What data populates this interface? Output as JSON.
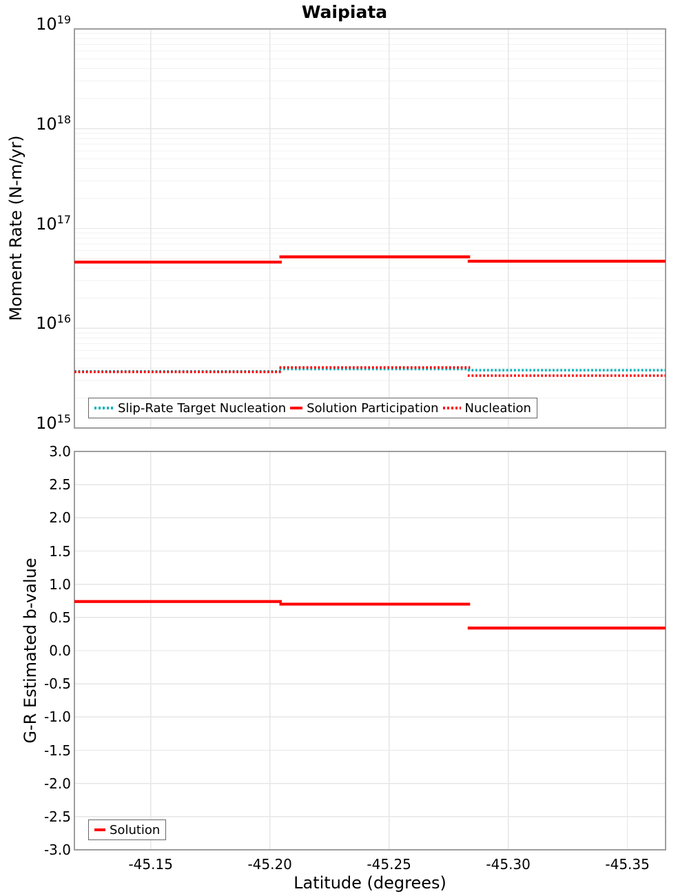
{
  "title": "Waipiata",
  "xaxis": {
    "label": "Latitude (degrees)",
    "tick_values": [
      -45.15,
      -45.2,
      -45.25,
      -45.3,
      -45.35
    ],
    "tick_labels": [
      "-45.15",
      "-45.20",
      "-45.25",
      "-45.30",
      "-45.35"
    ],
    "range": [
      -45.118,
      -45.366
    ],
    "inverted": true
  },
  "colors": {
    "solution": "#ff0000",
    "slip_rate_target": "#00b2ba",
    "grid_minor": "#f2f2f2",
    "grid_major": "#e6e6e6",
    "frame": "#9e9e9e",
    "legend_border": "#666666",
    "text": "#000000"
  },
  "chart_data": [
    {
      "type": "line",
      "subtype": "step-sections",
      "panel": "moment_rate",
      "ylabel": "Moment Rate (N-m/yr)",
      "yscale": "log",
      "ylim": [
        1000000000000000.0,
        1e+19
      ],
      "ytick_exponents": [
        19,
        18,
        17,
        16,
        15
      ],
      "grid": "both",
      "legend_position": "bottom-left",
      "sections_lat": [
        [
          -45.118,
          -45.205
        ],
        [
          -45.204,
          -45.284
        ],
        [
          -45.283,
          -45.366
        ]
      ],
      "series": [
        {
          "name": "Slip-Rate Target Nucleation",
          "color": "#00b2ba",
          "line_style": "dotted",
          "values": [
            3700000000000000.0,
            3900000000000000.0,
            3800000000000000.0
          ]
        },
        {
          "name": "Nucleation",
          "color": "#ff0000",
          "line_style": "dotted",
          "values": [
            3650000000000000.0,
            4050000000000000.0,
            3350000000000000.0
          ]
        },
        {
          "name": "Solution Participation",
          "color": "#ff0000",
          "line_style": "solid",
          "values": [
            4.6e+16,
            5.2e+16,
            4.7e+16
          ]
        }
      ]
    },
    {
      "type": "line",
      "subtype": "step-sections",
      "panel": "b_value",
      "ylabel": "G-R Estimated b-value",
      "yscale": "linear",
      "ylim": [
        -3.0,
        3.0
      ],
      "ytick_values": [
        3.0,
        2.5,
        2.0,
        1.5,
        1.0,
        0.5,
        0.0,
        -0.5,
        -1.0,
        -1.5,
        -2.0,
        -2.5,
        -3.0
      ],
      "ytick_labels": [
        "3.0",
        "2.5",
        "2.0",
        "1.5",
        "1.0",
        "0.5",
        "0.0",
        "-0.5",
        "-1.0",
        "-1.5",
        "-2.0",
        "-2.5",
        "-3.0"
      ],
      "grid": "major",
      "legend_position": "bottom-left",
      "sections_lat": [
        [
          -45.118,
          -45.205
        ],
        [
          -45.204,
          -45.284
        ],
        [
          -45.283,
          -45.366
        ]
      ],
      "series": [
        {
          "name": "Solution",
          "color": "#ff0000",
          "line_style": "solid",
          "values": [
            0.74,
            0.7,
            0.34
          ]
        }
      ]
    }
  ]
}
